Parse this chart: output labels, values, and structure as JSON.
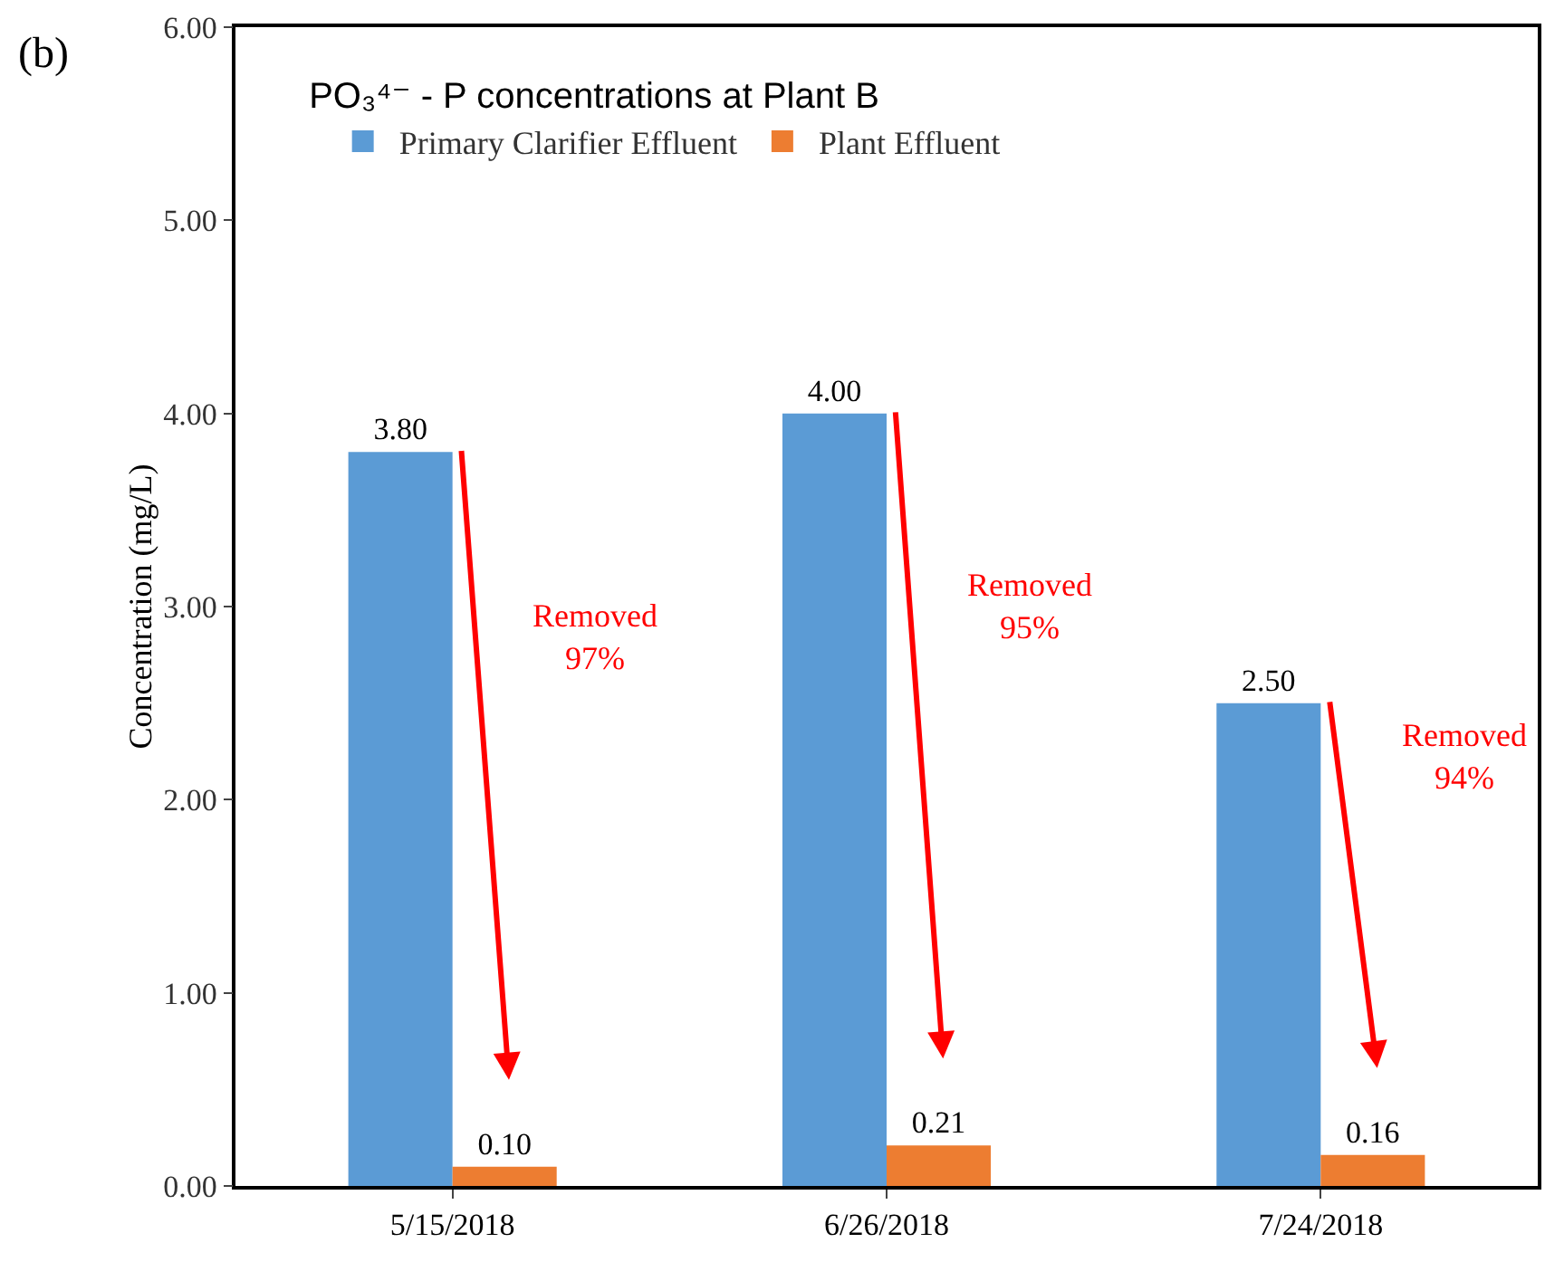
{
  "chart_data": {
    "type": "bar",
    "title": "PO₃⁴⁻ - P concentrations at Plant B",
    "ylabel": "Concentration (mg/L)",
    "categories": [
      "5/15/2018",
      "6/26/2018",
      "7/24/2018"
    ],
    "series": [
      {
        "name": "Primary Clarifier Effluent",
        "color": "#5b9bd5",
        "values": [
          3.8,
          4.0,
          2.5
        ],
        "value_labels": [
          "3.80",
          "4.00",
          "2.50"
        ]
      },
      {
        "name": "Plant Effluent",
        "color": "#ed7d31",
        "values": [
          0.1,
          0.21,
          0.16
        ],
        "value_labels": [
          "0.10",
          "0.21",
          "0.16"
        ]
      }
    ],
    "ylim": [
      0,
      6
    ],
    "yticks": [
      {
        "value": 0,
        "label": "0.00"
      },
      {
        "value": 1,
        "label": "1.00"
      },
      {
        "value": 2,
        "label": "2.00"
      },
      {
        "value": 3,
        "label": "3.00"
      },
      {
        "value": 4,
        "label": "4.00"
      },
      {
        "value": 5,
        "label": "5.00"
      },
      {
        "value": 6,
        "label": "6.00"
      }
    ],
    "grid": false,
    "legend": "top left",
    "annotations": [
      "(b)",
      "Removed\n97%",
      "Removed\n95%",
      "Removed\n94%"
    ]
  }
}
